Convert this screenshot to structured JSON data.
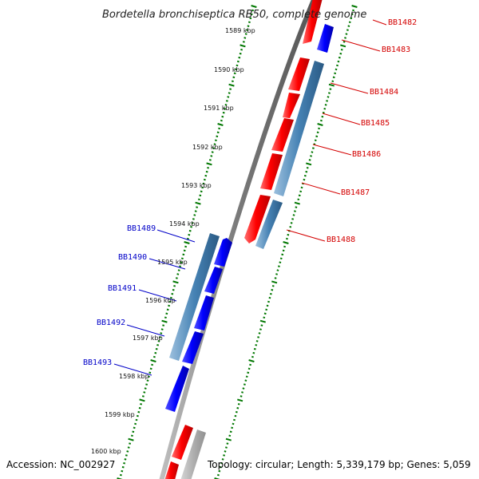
{
  "title": "Bordetella bronchiseptica RB50, complete genome",
  "accession": "Accession: NC_002927",
  "topology": "Topology: circular; Length: 5,339,179 bp; Genes: 5,059",
  "ticks": [
    "1589 kbp",
    "1590 kbp",
    "1591 kbp",
    "1592 kbp",
    "1593 kbp",
    "1594 kbp",
    "1595 kbp",
    "1596 kbp",
    "1597 kbp",
    "1598 kbp",
    "1599 kbp",
    "1600 kbp"
  ],
  "genes_right": [
    "BB1482",
    "BB1483",
    "BB1484",
    "BB1485",
    "BB1486",
    "BB1487",
    "BB1488"
  ],
  "genes_left": [
    "BB1489",
    "BB1490",
    "BB1491",
    "BB1492",
    "BB1493"
  ],
  "colors": {
    "forward_gene": "#ff0000",
    "reverse_gene": "#0000ff",
    "cds": "#4682b4",
    "backbone": "#808080",
    "ticks": "#007700",
    "label_right": "#d40000",
    "label_left": "#0000c8"
  }
}
